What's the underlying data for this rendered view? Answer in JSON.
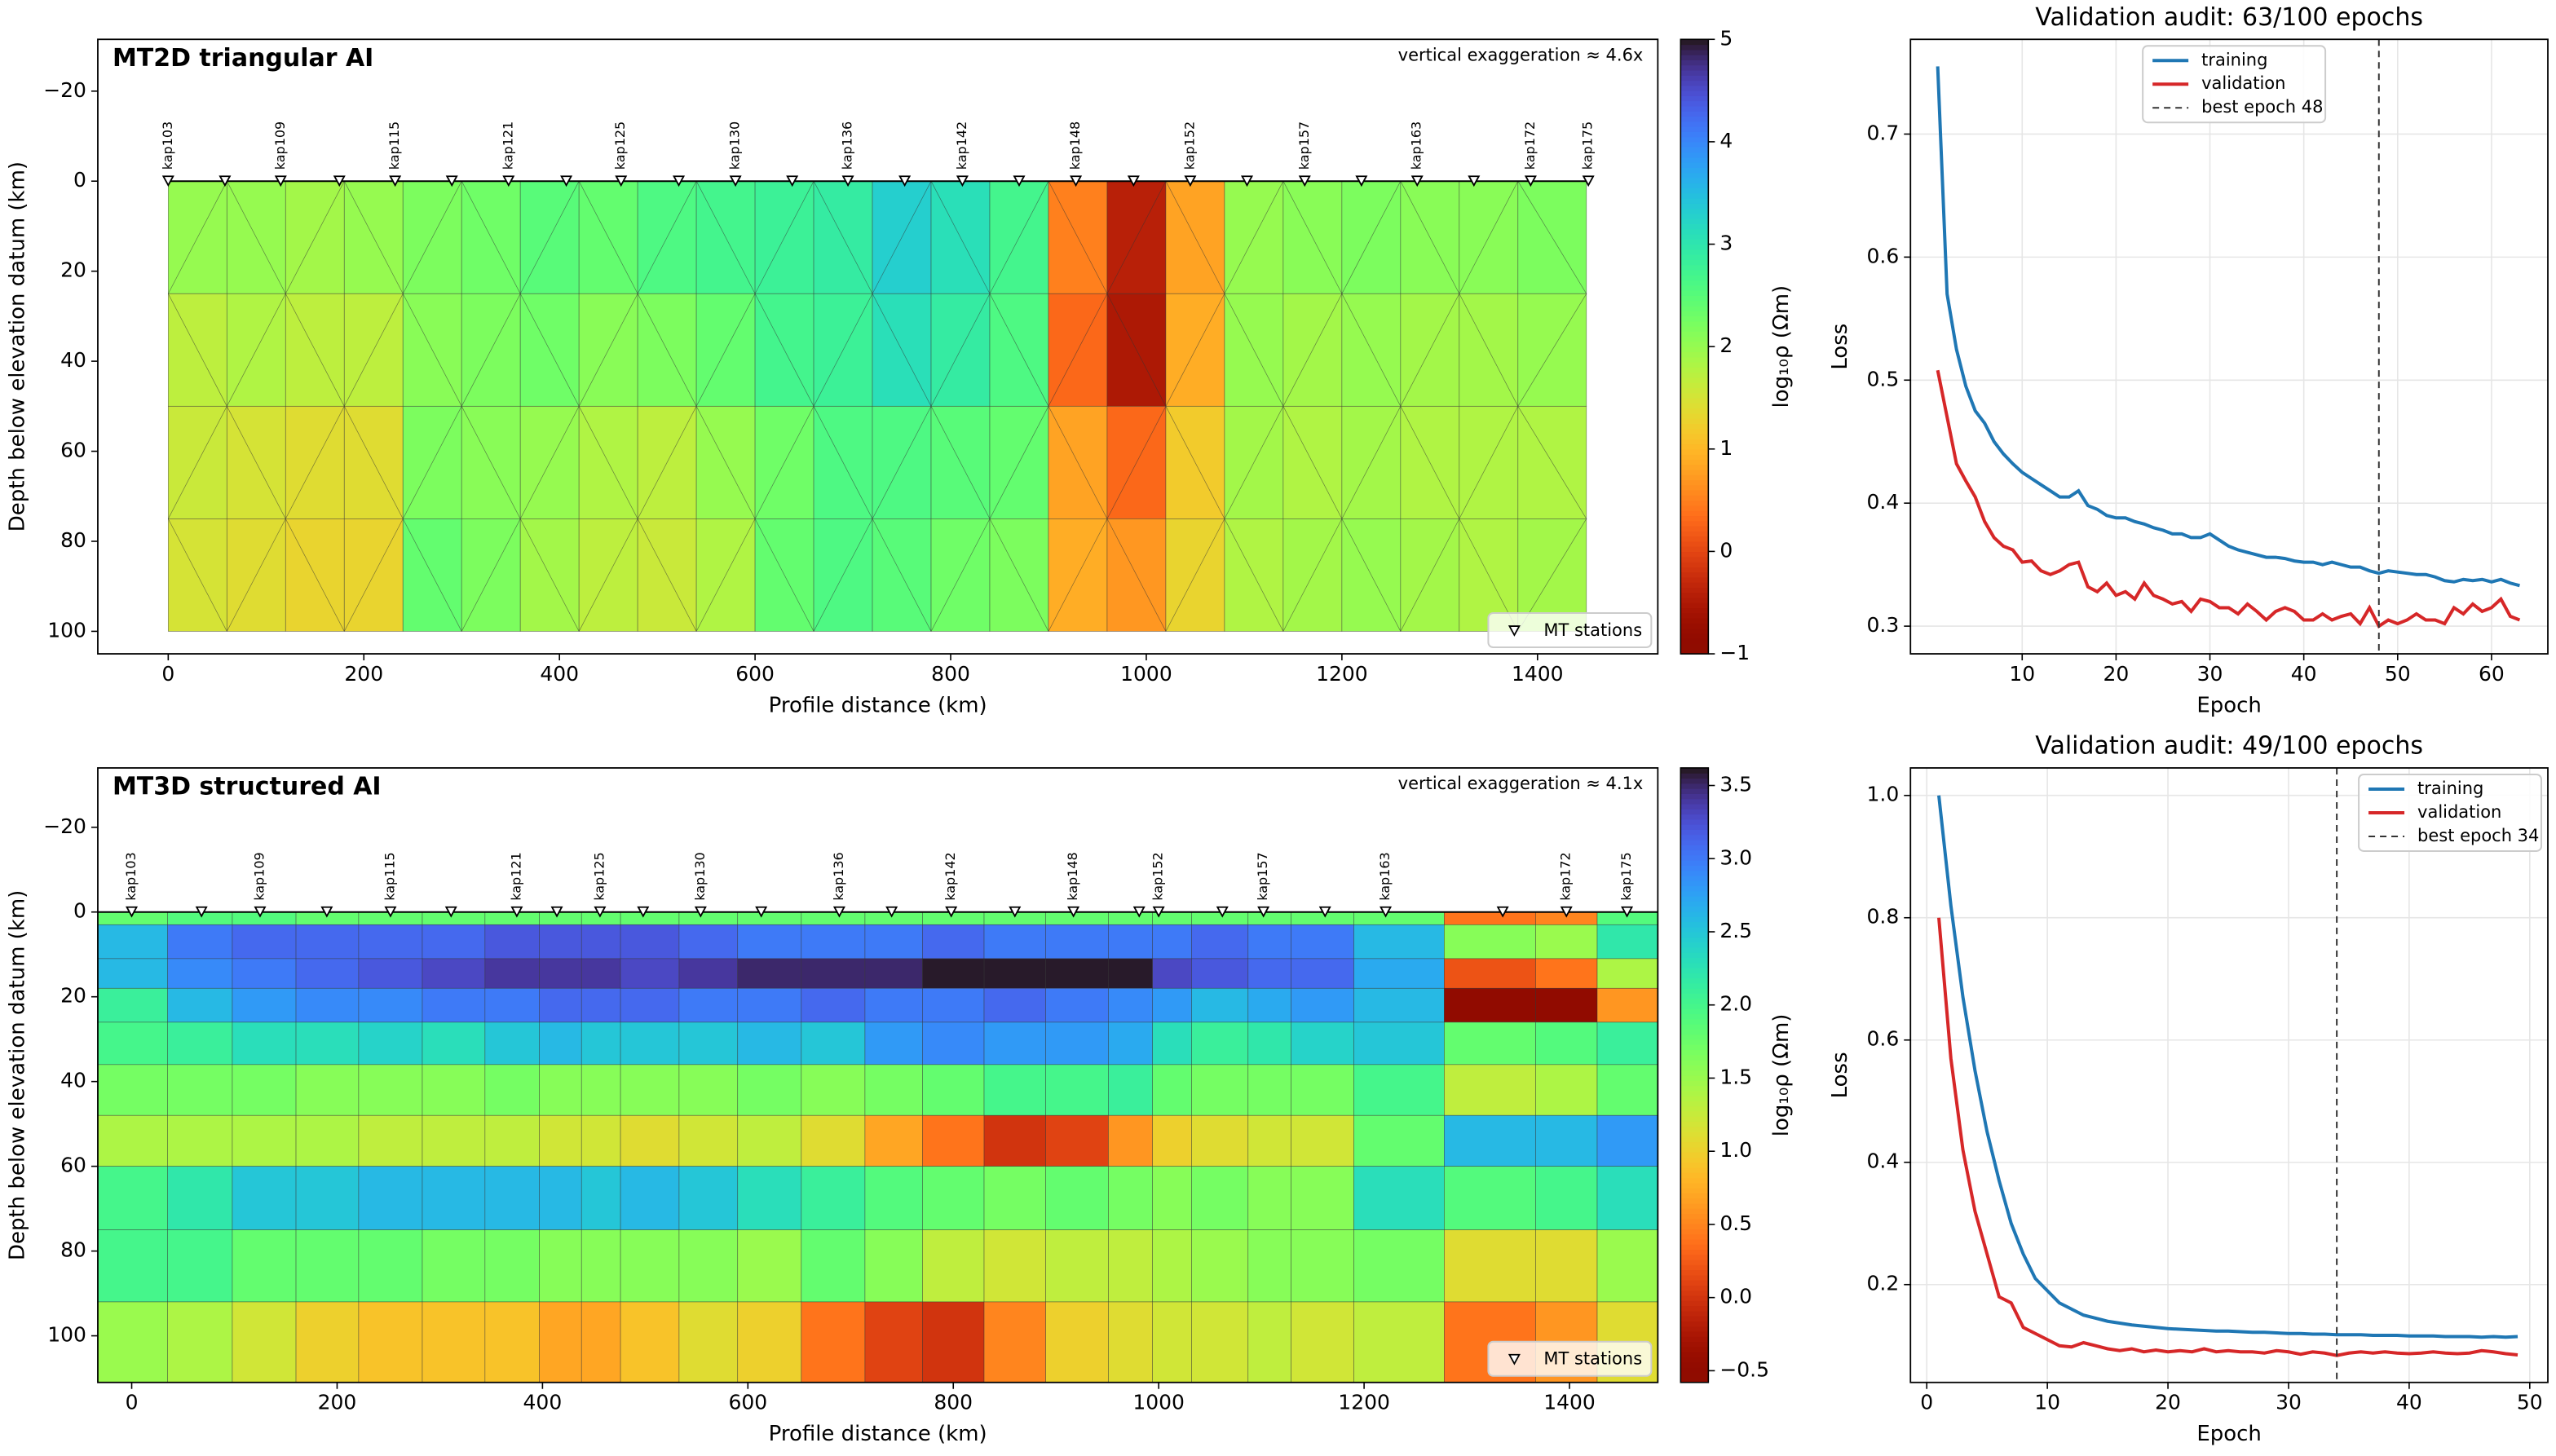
{
  "chart_data": [
    {
      "type": "mesh",
      "mesh": "triangular",
      "title": "MT2D triangular AI",
      "annotation": "vertical exaggeration ≈ 4.6x",
      "xlabel": "Profile distance (km)",
      "ylabel": "Depth below elevation datum (km)",
      "x_edges": [
        0,
        60,
        120,
        180,
        240,
        300,
        360,
        420,
        480,
        540,
        600,
        660,
        720,
        780,
        840,
        900,
        960,
        1020,
        1080,
        1140,
        1200,
        1260,
        1320,
        1380,
        1450
      ],
      "depth_edges": [
        0,
        25,
        50,
        75,
        100
      ],
      "values": [
        [
          2.0,
          2.0,
          1.9,
          2.0,
          2.2,
          2.3,
          2.5,
          2.4,
          2.6,
          2.7,
          2.8,
          2.9,
          3.3,
          3.1,
          2.7,
          0.5,
          -0.4,
          0.8,
          2.0,
          2.1,
          2.2,
          2.1,
          2.1,
          2.2
        ],
        [
          1.7,
          1.8,
          1.7,
          1.7,
          2.1,
          2.2,
          2.3,
          2.1,
          2.2,
          2.4,
          2.7,
          2.8,
          3.1,
          2.9,
          2.6,
          0.3,
          -0.5,
          0.9,
          2.0,
          1.9,
          2.0,
          1.9,
          1.9,
          2.0
        ],
        [
          1.6,
          1.5,
          1.4,
          1.4,
          2.2,
          2.1,
          2.0,
          1.8,
          1.7,
          2.0,
          2.3,
          2.6,
          2.6,
          2.5,
          2.4,
          0.8,
          0.3,
          1.2,
          1.9,
          1.8,
          1.9,
          1.8,
          1.8,
          1.8
        ],
        [
          1.5,
          1.4,
          1.3,
          1.3,
          2.4,
          2.2,
          1.9,
          1.7,
          1.6,
          1.8,
          2.4,
          2.6,
          2.5,
          2.3,
          2.2,
          0.9,
          0.7,
          1.3,
          1.8,
          1.9,
          2.0,
          1.9,
          1.8,
          1.9
        ]
      ],
      "colormap": "turbo_r",
      "clim": [
        -1,
        5
      ],
      "cticks": [
        {
          "value": -1,
          "label": "−1"
        },
        0,
        1,
        2,
        3,
        4,
        5
      ],
      "colorbar_label": "log₁₀ρ (Ωm)",
      "xlim": [
        -72,
        1523
      ],
      "ylim": [
        -31.5,
        105
      ],
      "xticks": [
        0,
        200,
        400,
        600,
        800,
        1000,
        1200,
        1400
      ],
      "yticks": [
        {
          "value": -20,
          "label": "−20"
        },
        0,
        20,
        40,
        60,
        80,
        100
      ],
      "stations": {
        "name": "MT stations",
        "labels": [
          "kap103",
          null,
          "kap109",
          null,
          "kap115",
          null,
          "kap121",
          null,
          "kap125",
          null,
          "kap130",
          null,
          "kap136",
          null,
          "kap142",
          null,
          "kap148",
          null,
          "kap152",
          null,
          "kap157",
          null,
          "kap163",
          null,
          "kap172",
          "kap175"
        ],
        "x": [
          0,
          58,
          115,
          175,
          232,
          290,
          348,
          407,
          463,
          522,
          580,
          638,
          695,
          753,
          812,
          870,
          928,
          987,
          1045,
          1103,
          1162,
          1220,
          1277,
          1335,
          1393,
          1452
        ]
      },
      "legend": "lower right"
    },
    {
      "type": "line",
      "title": "Validation audit: 63/100 epochs",
      "xlabel": "Epoch",
      "ylabel": "Loss",
      "x": [
        1,
        2,
        3,
        4,
        5,
        6,
        7,
        8,
        9,
        10,
        11,
        12,
        13,
        14,
        15,
        16,
        17,
        18,
        19,
        20,
        21,
        22,
        23,
        24,
        25,
        26,
        27,
        28,
        29,
        30,
        31,
        32,
        33,
        34,
        35,
        36,
        37,
        38,
        39,
        40,
        41,
        42,
        43,
        44,
        45,
        46,
        47,
        48,
        49,
        50,
        51,
        52,
        53,
        54,
        55,
        56,
        57,
        58,
        59,
        60,
        61,
        62,
        63
      ],
      "series": [
        {
          "name": "training",
          "color": "#1f77b4",
          "values": [
            0.755,
            0.57,
            0.525,
            0.495,
            0.475,
            0.465,
            0.45,
            0.44,
            0.432,
            0.425,
            0.42,
            0.415,
            0.41,
            0.405,
            0.405,
            0.41,
            0.398,
            0.395,
            0.39,
            0.388,
            0.388,
            0.385,
            0.383,
            0.38,
            0.378,
            0.375,
            0.375,
            0.372,
            0.372,
            0.375,
            0.37,
            0.365,
            0.362,
            0.36,
            0.358,
            0.356,
            0.356,
            0.355,
            0.353,
            0.352,
            0.352,
            0.35,
            0.352,
            0.35,
            0.348,
            0.348,
            0.345,
            0.343,
            0.345,
            0.344,
            0.343,
            0.342,
            0.342,
            0.34,
            0.337,
            0.336,
            0.338,
            0.337,
            0.338,
            0.336,
            0.338,
            0.335,
            0.333
          ]
        },
        {
          "name": "validation",
          "color": "#d62728",
          "values": [
            0.508,
            0.47,
            0.432,
            0.418,
            0.405,
            0.385,
            0.372,
            0.365,
            0.362,
            0.352,
            0.353,
            0.345,
            0.342,
            0.345,
            0.35,
            0.352,
            0.332,
            0.328,
            0.335,
            0.325,
            0.328,
            0.322,
            0.335,
            0.325,
            0.322,
            0.318,
            0.32,
            0.312,
            0.322,
            0.32,
            0.315,
            0.315,
            0.31,
            0.318,
            0.312,
            0.305,
            0.312,
            0.315,
            0.312,
            0.305,
            0.305,
            0.31,
            0.305,
            0.308,
            0.31,
            0.302,
            0.315,
            0.3,
            0.305,
            0.302,
            0.305,
            0.31,
            0.305,
            0.305,
            0.302,
            0.315,
            0.31,
            0.318,
            0.312,
            0.315,
            0.322,
            0.308,
            0.305
          ]
        }
      ],
      "best": {
        "name": "best epoch 48",
        "value": 48
      },
      "xlim": [
        -1.9,
        66
      ],
      "ylim": [
        0.2775,
        0.777
      ],
      "xticks": [
        10,
        20,
        30,
        40,
        50,
        60
      ],
      "yticks": [
        0.3,
        0.4,
        0.5,
        0.6,
        0.7
      ],
      "grid": true,
      "legend": "upper center"
    },
    {
      "type": "mesh",
      "mesh": "structured",
      "title": "MT3D structured AI",
      "annotation": "vertical exaggeration ≈ 4.1x",
      "xlabel": "Profile distance (km)",
      "ylabel": "Depth below elevation datum (km)",
      "x_edges": [
        -33,
        35,
        98,
        160,
        221,
        283,
        344,
        397,
        438,
        476,
        533,
        590,
        652,
        714,
        770,
        830,
        890,
        951,
        994,
        1032,
        1087,
        1129,
        1190,
        1278,
        1367,
        1427,
        1486
      ],
      "depth_edges": [
        0,
        3,
        11,
        18,
        26,
        36,
        48,
        60,
        75,
        92,
        111
      ],
      "values": [
        [
          1.8,
          1.9,
          1.9,
          1.8,
          1.8,
          1.8,
          1.8,
          1.8,
          1.8,
          1.8,
          1.8,
          1.8,
          1.8,
          1.8,
          1.8,
          1.8,
          1.8,
          1.8,
          1.8,
          1.8,
          1.8,
          1.8,
          1.8,
          0.4,
          0.5,
          1.9
        ],
        [
          2.6,
          3.0,
          3.1,
          3.1,
          3.1,
          3.1,
          3.2,
          3.2,
          3.2,
          3.2,
          3.1,
          3.0,
          3.0,
          3.0,
          3.1,
          3.0,
          3.0,
          3.0,
          3.0,
          3.1,
          3.0,
          3.0,
          2.6,
          1.6,
          1.5,
          2.2
        ],
        [
          2.6,
          2.9,
          3.0,
          3.1,
          3.2,
          3.3,
          3.4,
          3.4,
          3.4,
          3.3,
          3.4,
          3.5,
          3.5,
          3.5,
          3.6,
          3.6,
          3.6,
          3.6,
          3.3,
          3.2,
          3.1,
          3.1,
          2.7,
          0.2,
          0.4,
          1.4
        ],
        [
          2.1,
          2.6,
          2.8,
          2.9,
          2.9,
          3.0,
          3.0,
          3.1,
          3.1,
          3.1,
          3.0,
          3.0,
          3.1,
          3.0,
          3.0,
          3.1,
          3.0,
          2.9,
          2.8,
          2.6,
          2.7,
          2.8,
          2.6,
          -0.5,
          -0.5,
          0.6
        ],
        [
          2.0,
          2.1,
          2.3,
          2.3,
          2.4,
          2.3,
          2.5,
          2.6,
          2.5,
          2.5,
          2.5,
          2.6,
          2.5,
          2.8,
          2.9,
          2.8,
          2.8,
          2.7,
          2.3,
          2.1,
          2.2,
          2.4,
          2.5,
          1.8,
          1.9,
          2.1
        ],
        [
          1.7,
          1.7,
          1.7,
          1.6,
          1.6,
          1.6,
          1.7,
          1.6,
          1.6,
          1.6,
          1.6,
          1.7,
          1.6,
          1.7,
          1.8,
          2.0,
          2.0,
          2.1,
          1.8,
          1.7,
          1.7,
          1.7,
          2.0,
          1.3,
          1.4,
          1.8
        ],
        [
          1.4,
          1.4,
          1.4,
          1.4,
          1.3,
          1.3,
          1.3,
          1.2,
          1.2,
          1.1,
          1.2,
          1.3,
          1.1,
          0.7,
          0.4,
          0.0,
          0.1,
          0.6,
          1.0,
          1.1,
          1.2,
          1.2,
          1.8,
          2.6,
          2.6,
          2.8
        ],
        [
          2.0,
          2.2,
          2.5,
          2.5,
          2.6,
          2.6,
          2.6,
          2.6,
          2.5,
          2.6,
          2.5,
          2.3,
          2.1,
          1.9,
          1.8,
          1.7,
          1.8,
          1.7,
          1.6,
          1.7,
          1.6,
          1.6,
          2.3,
          1.9,
          2.0,
          2.3
        ],
        [
          2.0,
          2.0,
          1.8,
          1.8,
          1.8,
          1.7,
          1.7,
          1.6,
          1.6,
          1.6,
          1.6,
          1.5,
          1.8,
          1.6,
          1.3,
          1.2,
          1.3,
          1.3,
          1.4,
          1.5,
          1.6,
          1.6,
          1.7,
          1.1,
          1.1,
          1.5
        ],
        [
          1.5,
          1.4,
          1.2,
          1.0,
          0.9,
          0.9,
          0.9,
          0.7,
          0.7,
          0.9,
          1.1,
          1.0,
          0.4,
          0.1,
          0.0,
          0.5,
          1.0,
          1.1,
          1.2,
          1.2,
          1.3,
          1.2,
          1.3,
          0.4,
          0.6,
          1.1
        ]
      ],
      "colormap": "turbo_r",
      "clim": [
        -0.58,
        3.62
      ],
      "cticks": [
        {
          "value": -0.5,
          "label": "−0.5"
        },
        {
          "value": 0,
          "label": "0.0"
        },
        0.5,
        {
          "value": 1,
          "label": "1.0"
        },
        1.5,
        {
          "value": 2,
          "label": "2.0"
        },
        2.5,
        {
          "value": 3,
          "label": "3.0"
        },
        3.5
      ],
      "colorbar_label": "log₁₀ρ (Ωm)",
      "xlim": [
        -33,
        1486
      ],
      "ylim": [
        -34,
        111
      ],
      "xticks": [
        0,
        200,
        400,
        600,
        800,
        1000,
        1200,
        1400
      ],
      "yticks": [
        {
          "value": -20,
          "label": "−20"
        },
        0,
        20,
        40,
        60,
        80,
        100
      ],
      "stations": {
        "name": "MT stations",
        "labels": [
          "kap103",
          null,
          "kap109",
          null,
          "kap115",
          null,
          "kap121",
          null,
          "kap125",
          null,
          "kap130",
          null,
          "kap136",
          null,
          "kap142",
          null,
          "kap148",
          null,
          "kap152",
          null,
          "kap157",
          null,
          "kap163",
          null,
          "kap172",
          "kap175"
        ],
        "x": [
          0,
          68,
          125,
          190,
          252,
          311,
          375,
          414,
          456,
          498,
          554,
          613,
          689,
          740,
          798,
          860,
          917,
          981,
          1000,
          1062,
          1102,
          1162,
          1221,
          1335,
          1397,
          1456
        ]
      },
      "legend": "lower right"
    },
    {
      "type": "line",
      "title": "Validation audit: 49/100 epochs",
      "xlabel": "Epoch",
      "ylabel": "Loss",
      "x": [
        1,
        2,
        3,
        4,
        5,
        6,
        7,
        8,
        9,
        10,
        11,
        12,
        13,
        14,
        15,
        16,
        17,
        18,
        19,
        20,
        21,
        22,
        23,
        24,
        25,
        26,
        27,
        28,
        29,
        30,
        31,
        32,
        33,
        34,
        35,
        36,
        37,
        38,
        39,
        40,
        41,
        42,
        43,
        44,
        45,
        46,
        47,
        48,
        49
      ],
      "series": [
        {
          "name": "training",
          "color": "#1f77b4",
          "values": [
            1.0,
            0.82,
            0.67,
            0.55,
            0.45,
            0.37,
            0.3,
            0.25,
            0.21,
            0.19,
            0.17,
            0.16,
            0.15,
            0.145,
            0.14,
            0.137,
            0.134,
            0.132,
            0.13,
            0.128,
            0.127,
            0.126,
            0.125,
            0.124,
            0.124,
            0.123,
            0.122,
            0.122,
            0.121,
            0.12,
            0.12,
            0.119,
            0.119,
            0.118,
            0.118,
            0.118,
            0.117,
            0.117,
            0.117,
            0.116,
            0.116,
            0.116,
            0.115,
            0.115,
            0.115,
            0.114,
            0.115,
            0.114,
            0.115
          ]
        },
        {
          "name": "validation",
          "color": "#d62728",
          "values": [
            0.8,
            0.57,
            0.42,
            0.32,
            0.25,
            0.18,
            0.17,
            0.13,
            0.12,
            0.11,
            0.1,
            0.098,
            0.105,
            0.1,
            0.095,
            0.092,
            0.095,
            0.09,
            0.093,
            0.09,
            0.092,
            0.09,
            0.095,
            0.09,
            0.092,
            0.09,
            0.09,
            0.088,
            0.092,
            0.09,
            0.086,
            0.09,
            0.088,
            0.084,
            0.088,
            0.09,
            0.088,
            0.09,
            0.088,
            0.087,
            0.088,
            0.09,
            0.088,
            0.087,
            0.088,
            0.092,
            0.09,
            0.087,
            0.085
          ]
        }
      ],
      "best": {
        "name": "best epoch 34",
        "value": 34
      },
      "xlim": [
        -1.35,
        51.5
      ],
      "ylim": [
        0.04,
        1.045
      ],
      "xticks": [
        0,
        10,
        20,
        30,
        40,
        50
      ],
      "yticks": [
        0.2,
        0.4,
        0.6,
        0.8,
        {
          "value": 1,
          "label": "1.0"
        }
      ],
      "grid": true,
      "legend": "upper right"
    }
  ]
}
